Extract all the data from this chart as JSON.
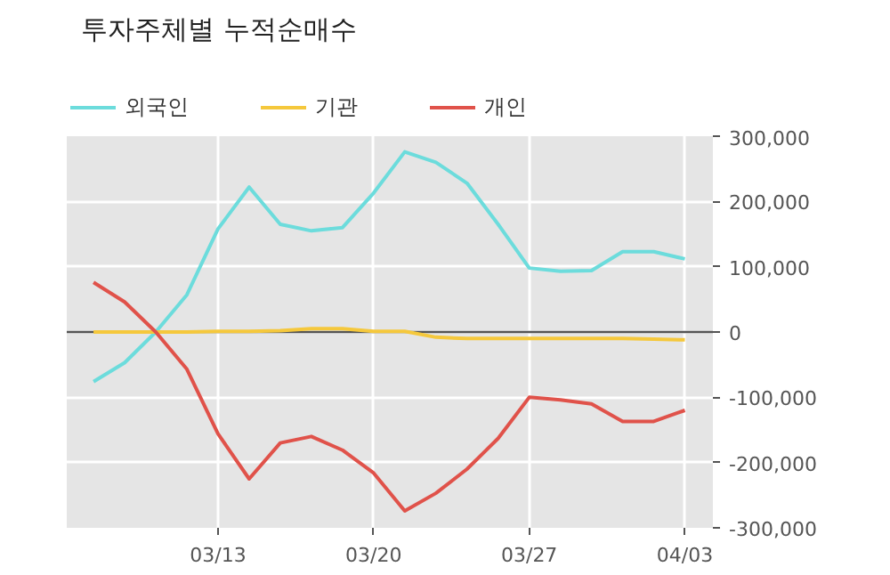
{
  "chart_data": {
    "type": "line",
    "title": "투자주체별 누적순매수",
    "categories": [
      null,
      null,
      null,
      null,
      "03/13",
      null,
      null,
      null,
      null,
      "03/20",
      null,
      null,
      null,
      null,
      "03/27",
      null,
      null,
      null,
      null,
      "04/03"
    ],
    "series": [
      {
        "name": "외국인",
        "color": "#6cdcdc",
        "values": [
          -76000,
          -47000,
          0,
          57000,
          158000,
          222000,
          165000,
          155000,
          160000,
          213000,
          276000,
          260000,
          228000,
          165000,
          98000,
          93000,
          94000,
          123000,
          123000,
          112000
        ]
      },
      {
        "name": "기관",
        "color": "#f5c83c",
        "values": [
          0,
          0,
          0,
          0,
          1000,
          1000,
          2000,
          5000,
          5000,
          1000,
          1000,
          -8000,
          -10000,
          -10000,
          -10000,
          -10000,
          -10000,
          -10000,
          -11000,
          -12000
        ]
      },
      {
        "name": "개인",
        "color": "#e0524a",
        "values": [
          76000,
          46000,
          0,
          -57000,
          -156000,
          -225000,
          -170000,
          -160000,
          -181000,
          -216000,
          -274000,
          -247000,
          -210000,
          -163000,
          -100000,
          -104000,
          -110000,
          -137000,
          -137000,
          -120000
        ]
      }
    ],
    "ylim": [
      -300000,
      300000
    ],
    "yticks": [
      {
        "value": -300000,
        "label": "-300,000"
      },
      {
        "value": -200000,
        "label": "-200,000"
      },
      {
        "value": -100000,
        "label": "-100,000"
      },
      0,
      {
        "value": 100000,
        "label": "100,000"
      },
      {
        "value": 200000,
        "label": "200,000"
      },
      {
        "value": 300000,
        "label": "300,000"
      }
    ],
    "ref_lines": [
      {
        "axis": "y",
        "value": 0,
        "color": "#555555"
      }
    ],
    "grid": true,
    "legend": "top left",
    "line_style": "solid",
    "marker": "none"
  }
}
